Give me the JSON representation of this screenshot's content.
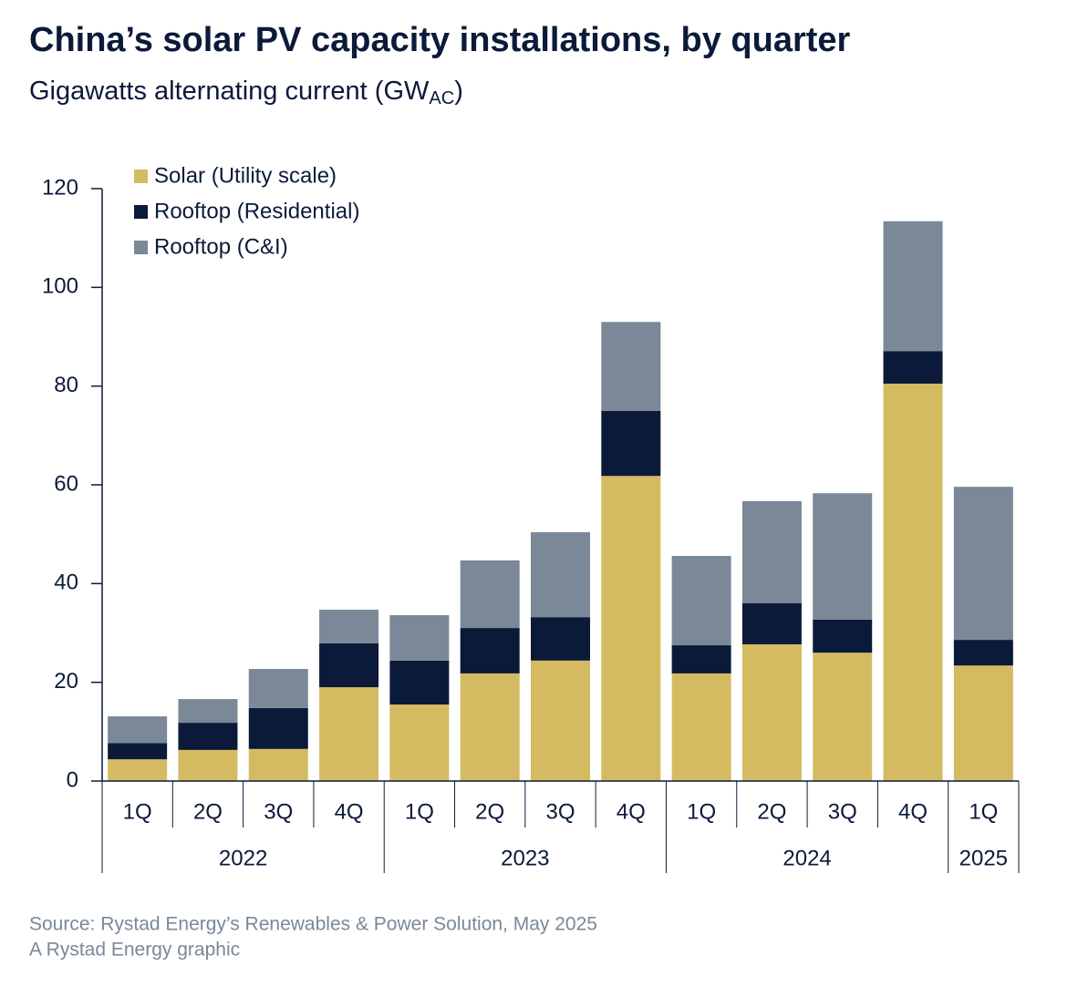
{
  "chart_data": {
    "type": "stacked_bar",
    "title": "China’s solar PV capacity installations, by quarter",
    "subtitle": {
      "text": "Gigawatts alternating current (GW",
      "subscript": "AC",
      "suffix": ")"
    },
    "groups": [
      {
        "name": "2022",
        "categories": [
          "1Q",
          "2Q",
          "3Q",
          "4Q"
        ]
      },
      {
        "name": "2023",
        "categories": [
          "1Q",
          "2Q",
          "3Q",
          "4Q"
        ]
      },
      {
        "name": "2024",
        "categories": [
          "1Q",
          "2Q",
          "3Q",
          "4Q"
        ]
      },
      {
        "name": "2025",
        "categories": [
          "1Q"
        ]
      }
    ],
    "series": [
      {
        "name": "Solar (Utility scale)",
        "color": "#d4bb62",
        "values": [
          4.4,
          6.3,
          6.5,
          19.0,
          15.5,
          21.8,
          24.4,
          61.8,
          21.8,
          27.7,
          26.0,
          80.5,
          23.4
        ]
      },
      {
        "name": "Rooftop (Residential)",
        "color": "#0c1a3a",
        "values": [
          3.3,
          5.5,
          8.3,
          8.9,
          8.9,
          9.2,
          8.8,
          13.2,
          5.7,
          8.3,
          6.7,
          6.6,
          5.2
        ]
      },
      {
        "name": "Rooftop (C&I)",
        "color": "#7a8898",
        "values": [
          5.4,
          4.8,
          7.9,
          6.8,
          9.2,
          13.7,
          17.2,
          18.0,
          18.1,
          20.7,
          25.6,
          26.3,
          31.0
        ]
      }
    ],
    "ylim": [
      0,
      120
    ],
    "yticks": [
      0,
      20,
      40,
      60,
      80,
      100,
      120
    ],
    "source": "Source: Rystad Energy’s Renewables & Power Solution, May 2025",
    "credit": "A Rystad Energy graphic"
  }
}
